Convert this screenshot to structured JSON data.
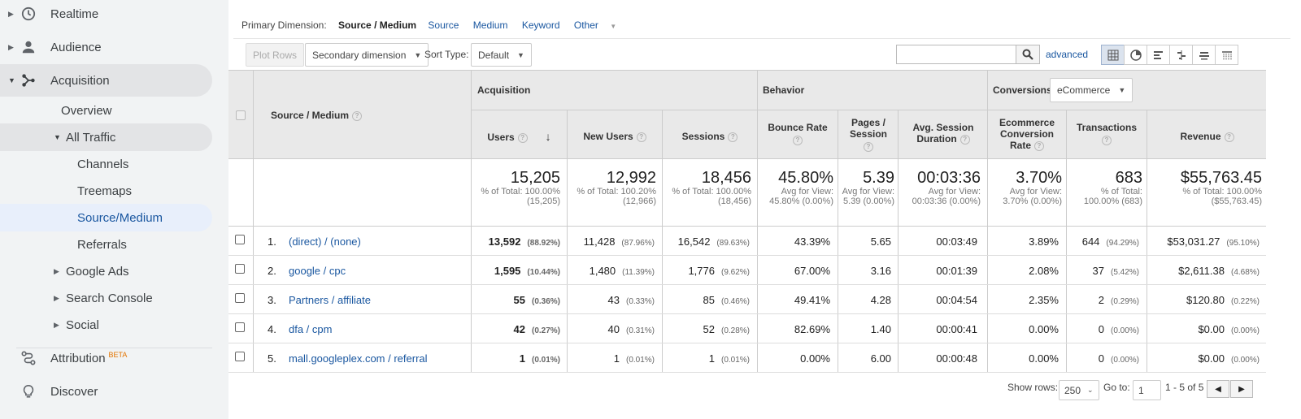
{
  "sidebar": {
    "items": [
      {
        "label": "Realtime",
        "icon": "clock-icon"
      },
      {
        "label": "Audience",
        "icon": "person-icon"
      },
      {
        "label": "Acquisition",
        "icon": "acquisition-icon"
      },
      {
        "label": "Overview"
      },
      {
        "label": "All Traffic"
      },
      {
        "label": "Channels"
      },
      {
        "label": "Treemaps"
      },
      {
        "label": "Source/Medium"
      },
      {
        "label": "Referrals"
      },
      {
        "label": "Google Ads"
      },
      {
        "label": "Search Console"
      },
      {
        "label": "Social"
      },
      {
        "label": "Attribution",
        "badge": "BETA",
        "icon": "attribution-icon"
      },
      {
        "label": "Discover",
        "icon": "lightbulb-icon"
      }
    ]
  },
  "dimension_bar": {
    "label": "Primary Dimension:",
    "active": "Source / Medium",
    "options": [
      "Source",
      "Medium",
      "Keyword",
      "Other"
    ]
  },
  "toolbar": {
    "plot_rows": "Plot Rows",
    "secondary_dimension": "Secondary dimension",
    "sort_type_label": "Sort Type:",
    "sort_type_value": "Default",
    "advanced": "advanced"
  },
  "table": {
    "dimension_header": "Source / Medium",
    "groups": {
      "acquisition": "Acquisition",
      "behavior": "Behavior",
      "conversions": "Conversions",
      "conversions_select": "eCommerce"
    },
    "columns": [
      "Users",
      "New Users",
      "Sessions",
      "Bounce Rate",
      "Pages / Session",
      "Avg. Session Duration",
      "Ecommerce Conversion Rate",
      "Transactions",
      "Revenue"
    ],
    "totals": [
      {
        "value": "15,205",
        "sub": "% of Total: 100.00% (15,205)"
      },
      {
        "value": "12,992",
        "sub": "% of Total: 100.20% (12,966)"
      },
      {
        "value": "18,456",
        "sub": "% of Total: 100.00% (18,456)"
      },
      {
        "value": "45.80%",
        "sub": "Avg for View: 45.80% (0.00%)"
      },
      {
        "value": "5.39",
        "sub": "Avg for View: 5.39 (0.00%)"
      },
      {
        "value": "00:03:36",
        "sub": "Avg for View: 00:03:36 (0.00%)"
      },
      {
        "value": "3.70%",
        "sub": "Avg for View: 3.70% (0.00%)"
      },
      {
        "value": "683",
        "sub": "% of Total: 100.00% (683)"
      },
      {
        "value": "$55,763.45",
        "sub": "% of Total: 100.00% ($55,763.45)"
      }
    ],
    "rows": [
      {
        "idx": "1.",
        "source": "(direct) / (none)",
        "users": "13,592",
        "users_pct": "(88.92%)",
        "new_users": "11,428",
        "new_users_pct": "(87.96%)",
        "sessions": "16,542",
        "sessions_pct": "(89.63%)",
        "bounce": "43.39%",
        "pages": "5.65",
        "duration": "00:03:49",
        "conv": "3.89%",
        "trans": "644",
        "trans_pct": "(94.29%)",
        "revenue": "$53,031.27",
        "revenue_pct": "(95.10%)"
      },
      {
        "idx": "2.",
        "source": "google / cpc",
        "users": "1,595",
        "users_pct": "(10.44%)",
        "new_users": "1,480",
        "new_users_pct": "(11.39%)",
        "sessions": "1,776",
        "sessions_pct": "(9.62%)",
        "bounce": "67.00%",
        "pages": "3.16",
        "duration": "00:01:39",
        "conv": "2.08%",
        "trans": "37",
        "trans_pct": "(5.42%)",
        "revenue": "$2,611.38",
        "revenue_pct": "(4.68%)"
      },
      {
        "idx": "3.",
        "source": "Partners / affiliate",
        "users": "55",
        "users_pct": "(0.36%)",
        "new_users": "43",
        "new_users_pct": "(0.33%)",
        "sessions": "85",
        "sessions_pct": "(0.46%)",
        "bounce": "49.41%",
        "pages": "4.28",
        "duration": "00:04:54",
        "conv": "2.35%",
        "trans": "2",
        "trans_pct": "(0.29%)",
        "revenue": "$120.80",
        "revenue_pct": "(0.22%)"
      },
      {
        "idx": "4.",
        "source": "dfa / cpm",
        "users": "42",
        "users_pct": "(0.27%)",
        "new_users": "40",
        "new_users_pct": "(0.31%)",
        "sessions": "52",
        "sessions_pct": "(0.28%)",
        "bounce": "82.69%",
        "pages": "1.40",
        "duration": "00:00:41",
        "conv": "0.00%",
        "trans": "0",
        "trans_pct": "(0.00%)",
        "revenue": "$0.00",
        "revenue_pct": "(0.00%)"
      },
      {
        "idx": "5.",
        "source": "mall.googleplex.com / referral",
        "users": "1",
        "users_pct": "(0.01%)",
        "new_users": "1",
        "new_users_pct": "(0.01%)",
        "sessions": "1",
        "sessions_pct": "(0.01%)",
        "bounce": "0.00%",
        "pages": "6.00",
        "duration": "00:00:48",
        "conv": "0.00%",
        "trans": "0",
        "trans_pct": "(0.00%)",
        "revenue": "$0.00",
        "revenue_pct": "(0.00%)"
      }
    ]
  },
  "pager": {
    "show_rows_label": "Show rows:",
    "show_rows_value": "250",
    "goto_label": "Go to:",
    "goto_value": "1",
    "range": "1 - 5 of 5"
  },
  "colors": {
    "link": "#1a57a0",
    "selected_bg": "#e8effb",
    "header_bg": "#e9e9e9"
  }
}
